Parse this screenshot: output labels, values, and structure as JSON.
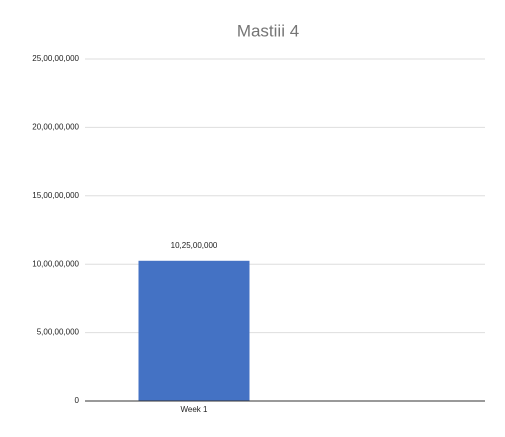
{
  "chart_data": {
    "type": "bar",
    "title": "Mastiii 4",
    "categories": [
      "Week 1",
      null
    ],
    "values": [
      102500000,
      null
    ],
    "value_labels": [
      "10,25,00,000",
      null
    ],
    "color": "#4472c4",
    "ylim": [
      0,
      250000000
    ],
    "yticks": [
      0,
      {
        "value": 50000000,
        "label": "5,00,00,000"
      },
      {
        "value": 100000000,
        "label": "10,00,00,000"
      },
      {
        "value": 150000000,
        "label": "15,00,00,000"
      },
      {
        "value": 200000000,
        "label": "20,00,00,000"
      },
      {
        "value": 250000000,
        "label": "25,00,00,000"
      }
    ],
    "grid": true
  }
}
